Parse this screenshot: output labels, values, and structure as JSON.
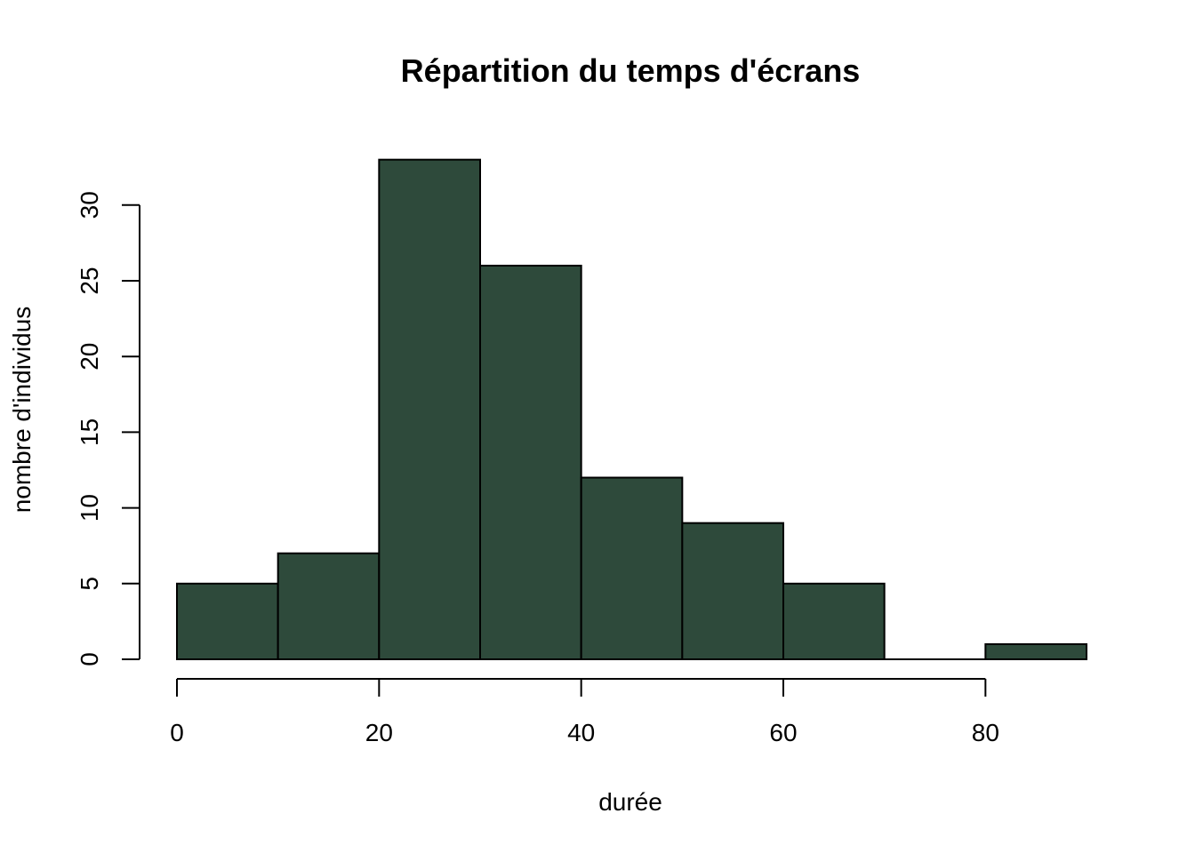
{
  "chart_data": {
    "type": "bar",
    "title": "Répartition du temps d'écrans",
    "xlabel": "durée",
    "ylabel": "nombre d'individus",
    "bins": [
      {
        "x0": 0,
        "x1": 10,
        "count": 5
      },
      {
        "x0": 10,
        "x1": 20,
        "count": 7
      },
      {
        "x0": 20,
        "x1": 30,
        "count": 33
      },
      {
        "x0": 30,
        "x1": 40,
        "count": 26
      },
      {
        "x0": 40,
        "x1": 50,
        "count": 12
      },
      {
        "x0": 50,
        "x1": 60,
        "count": 9
      },
      {
        "x0": 60,
        "x1": 70,
        "count": 5
      },
      {
        "x0": 70,
        "x1": 80,
        "count": 0
      },
      {
        "x0": 80,
        "x1": 90,
        "count": 1
      }
    ],
    "xticks": [
      0,
      20,
      40,
      60,
      80
    ],
    "yticks": [
      0,
      5,
      10,
      15,
      20,
      25,
      30
    ],
    "xlim": [
      0,
      90
    ],
    "ylim": [
      0,
      33
    ],
    "grid": false,
    "colors": {
      "bar_fill": "#2e4a3b",
      "bar_stroke": "#000000"
    }
  }
}
